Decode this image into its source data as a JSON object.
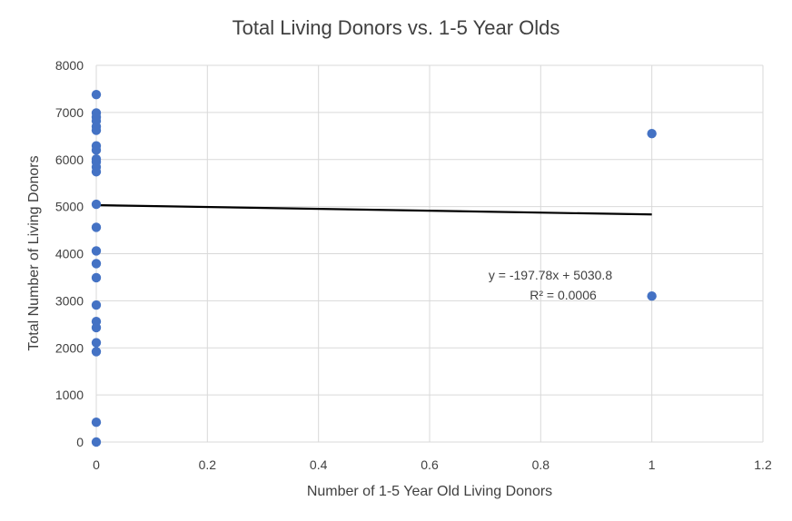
{
  "chart_data": {
    "type": "scatter",
    "title": "Total Living Donors vs. 1-5 Year Olds",
    "xlabel": "Number of 1-5 Year Old Living Donors",
    "ylabel": "Total Number of Living Donors",
    "xlim": [
      0,
      1.2
    ],
    "ylim": [
      0,
      8000
    ],
    "x_ticks": [
      "0",
      "0.2",
      "0.4",
      "0.6",
      "0.8",
      "1",
      "1.2"
    ],
    "y_ticks": [
      "0",
      "1000",
      "2000",
      "3000",
      "4000",
      "5000",
      "6000",
      "7000",
      "8000"
    ],
    "grid": true,
    "marker_color": "#4472c4",
    "points": [
      {
        "x": 0,
        "y": 7380
      },
      {
        "x": 0,
        "y": 6990
      },
      {
        "x": 0,
        "y": 6900
      },
      {
        "x": 0,
        "y": 6820
      },
      {
        "x": 0,
        "y": 6700
      },
      {
        "x": 0,
        "y": 6620
      },
      {
        "x": 0,
        "y": 6290
      },
      {
        "x": 0,
        "y": 6200
      },
      {
        "x": 0,
        "y": 6010
      },
      {
        "x": 0,
        "y": 5950
      },
      {
        "x": 0,
        "y": 5840
      },
      {
        "x": 0,
        "y": 5740
      },
      {
        "x": 0,
        "y": 5050
      },
      {
        "x": 0,
        "y": 4560
      },
      {
        "x": 0,
        "y": 4060
      },
      {
        "x": 0,
        "y": 3790
      },
      {
        "x": 0,
        "y": 3490
      },
      {
        "x": 0,
        "y": 2910
      },
      {
        "x": 0,
        "y": 2560
      },
      {
        "x": 0,
        "y": 2430
      },
      {
        "x": 0,
        "y": 2110
      },
      {
        "x": 0,
        "y": 1920
      },
      {
        "x": 0,
        "y": 420
      },
      {
        "x": 0,
        "y": 0
      },
      {
        "x": 1,
        "y": 6550
      },
      {
        "x": 1,
        "y": 3100
      }
    ],
    "trendline": {
      "slope": -197.78,
      "intercept": 5030.8,
      "x_range": [
        0,
        1
      ],
      "color": "#000000",
      "equation": "y = -197.78x + 5030.8",
      "r_squared": "R² = 0.0006"
    }
  }
}
